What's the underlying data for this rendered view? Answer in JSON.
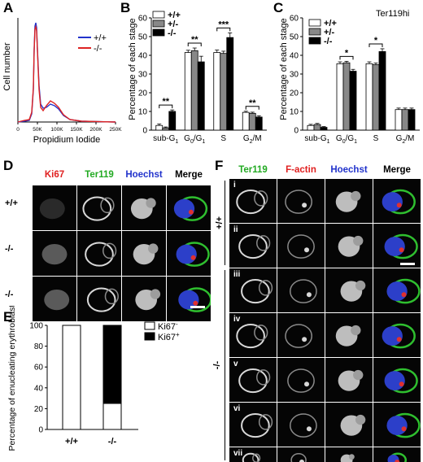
{
  "panels": {
    "A": {
      "label": "A",
      "ylabel": "Cell number",
      "xlabel": "Propidium Iodide",
      "ticks": [
        "0",
        "50K",
        "100K",
        "150K",
        "200K",
        "250K"
      ],
      "legend": [
        {
          "name": "+/+",
          "color": "#2233cc"
        },
        {
          "name": "-/-",
          "color": "#dd2222"
        }
      ]
    },
    "B": {
      "label": "B",
      "ylabel": "Percentage of each stage",
      "legend": [
        "+/+",
        "+/-",
        "-/-"
      ],
      "significance": [
        "**",
        "**",
        "***",
        "**"
      ]
    },
    "C": {
      "label": "C",
      "title": "Ter119hi",
      "ylabel": "Percentage of each stage",
      "legend": [
        "+/+",
        "+/-",
        "-/-"
      ],
      "significance": [
        "*",
        "*"
      ]
    },
    "D": {
      "label": "D",
      "headers": [
        {
          "text": "Ki67",
          "color": "#e02020"
        },
        {
          "text": "Ter119",
          "color": "#22aa22"
        },
        {
          "text": "Hoechst",
          "color": "#2233cc"
        },
        {
          "text": "Merge",
          "color": "#000000"
        }
      ],
      "rows": [
        "+/+",
        "-/-",
        "-/-"
      ]
    },
    "E": {
      "label": "E",
      "ylabel": "Percentage of enucleating erythroblasts",
      "legend": [
        {
          "name": "Ki67-",
          "fill": "#ffffff"
        },
        {
          "name": "Ki67+",
          "fill": "#000000"
        }
      ]
    },
    "F": {
      "label": "F",
      "headers": [
        {
          "text": "Ter119",
          "color": "#22aa22"
        },
        {
          "text": "F-actin",
          "color": "#e02020"
        },
        {
          "text": "Hoechst",
          "color": "#2233cc"
        },
        {
          "text": "Merge",
          "color": "#000000"
        }
      ],
      "groups": [
        "+/+",
        "-/-"
      ],
      "rows": [
        "i",
        "ii",
        "iii",
        "iv",
        "v",
        "vi",
        "vii"
      ]
    }
  },
  "chart_data": [
    {
      "panel": "B",
      "type": "bar",
      "categories": [
        "sub-G1",
        "G0/G1",
        "S",
        "G2/M"
      ],
      "ylim": [
        0,
        60
      ],
      "yticks": [
        0,
        10,
        20,
        30,
        40,
        50,
        60
      ],
      "series": [
        {
          "name": "+/+",
          "fill": "#ffffff",
          "values": [
            2.5,
            41.5,
            41.5,
            9.5
          ],
          "errors": [
            0.8,
            1.2,
            1.3,
            0.6
          ]
        },
        {
          "name": "+/-",
          "fill": "#888888",
          "values": [
            1.2,
            42.5,
            41.0,
            9.0
          ],
          "errors": [
            0.5,
            1.4,
            1.2,
            0.6
          ]
        },
        {
          "name": "-/-",
          "fill": "#000000",
          "values": [
            10.0,
            36.5,
            49.5,
            7.0
          ],
          "errors": [
            0.8,
            3.0,
            2.5,
            0.7
          ]
        }
      ]
    },
    {
      "panel": "C",
      "type": "bar",
      "categories": [
        "sub-G1",
        "G0/G1",
        "S",
        "G2/M"
      ],
      "ylim": [
        0,
        60
      ],
      "yticks": [
        0,
        10,
        20,
        30,
        40,
        50,
        60
      ],
      "series": [
        {
          "name": "+/+",
          "fill": "#ffffff",
          "values": [
            2.5,
            35.5,
            35.5,
            11.0
          ],
          "errors": [
            0.6,
            1.0,
            1.0,
            0.8
          ]
        },
        {
          "name": "+/-",
          "fill": "#888888",
          "values": [
            3.0,
            36.0,
            35.0,
            11.0
          ],
          "errors": [
            0.6,
            0.8,
            0.9,
            0.8
          ]
        },
        {
          "name": "-/-",
          "fill": "#000000",
          "values": [
            1.5,
            31.5,
            42.0,
            11.0
          ],
          "errors": [
            0.4,
            1.0,
            1.5,
            0.8
          ]
        }
      ]
    },
    {
      "panel": "E",
      "type": "bar",
      "stacked": true,
      "categories": [
        "+/+",
        "-/-"
      ],
      "ylim": [
        0,
        100
      ],
      "yticks": [
        0,
        20,
        40,
        60,
        80,
        100
      ],
      "series": [
        {
          "name": "Ki67-",
          "fill": "#ffffff",
          "values": [
            100,
            25
          ]
        },
        {
          "name": "Ki67+",
          "fill": "#000000",
          "values": [
            0,
            75
          ]
        }
      ]
    }
  ]
}
